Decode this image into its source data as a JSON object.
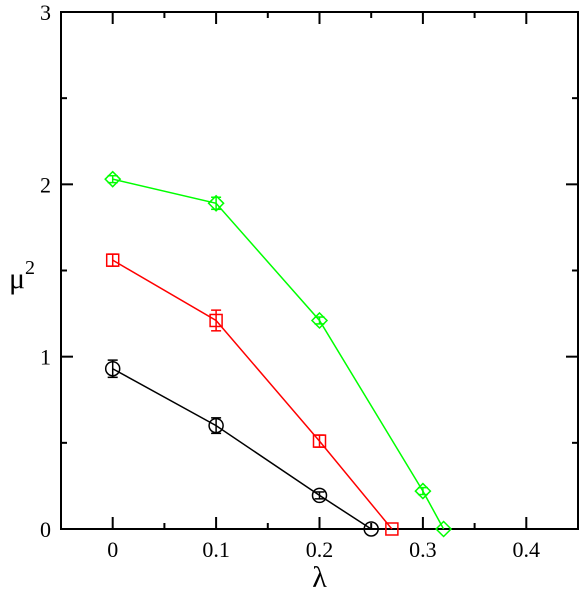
{
  "chart_data": {
    "type": "line",
    "title": "",
    "xlabel": "λ",
    "ylabel": "μ",
    "ylabel_superscript": "2",
    "xlim": [
      -0.05,
      0.45
    ],
    "ylim": [
      0,
      3
    ],
    "x_ticks": [
      0,
      0.1,
      0.2,
      0.3,
      0.4
    ],
    "x_tick_labels": [
      "0",
      "0.1",
      "0.2",
      "0.3",
      "0.4"
    ],
    "y_ticks": [
      0,
      1,
      2,
      3
    ],
    "y_tick_labels": [
      "0",
      "1",
      "2",
      "3"
    ],
    "grid": false,
    "legend": "none",
    "series": [
      {
        "color": "#000000",
        "marker": "circle",
        "points": [
          {
            "x": 0,
            "y": 0.93,
            "err": 0.05
          },
          {
            "x": 0.1,
            "y": 0.6,
            "err": 0.045
          },
          {
            "x": 0.2,
            "y": 0.195,
            "err": 0.02
          },
          {
            "x": 0.25,
            "y": 0.0,
            "err": 0
          }
        ]
      },
      {
        "color": "#ff0000",
        "marker": "square",
        "points": [
          {
            "x": 0,
            "y": 1.56,
            "err": 0.035
          },
          {
            "x": 0.1,
            "y": 1.21,
            "err": 0.06
          },
          {
            "x": 0.2,
            "y": 0.51,
            "err": 0.035
          },
          {
            "x": 0.27,
            "y": 0.0,
            "err": 0
          }
        ]
      },
      {
        "color": "#00ff00",
        "marker": "diamond",
        "points": [
          {
            "x": 0,
            "y": 2.03,
            "err": 0.02
          },
          {
            "x": 0.1,
            "y": 1.89,
            "err": 0.035
          },
          {
            "x": 0.2,
            "y": 1.21,
            "err": 0.02
          },
          {
            "x": 0.3,
            "y": 0.22,
            "err": 0.02
          },
          {
            "x": 0.32,
            "y": 0.0,
            "err": 0
          }
        ]
      }
    ]
  }
}
